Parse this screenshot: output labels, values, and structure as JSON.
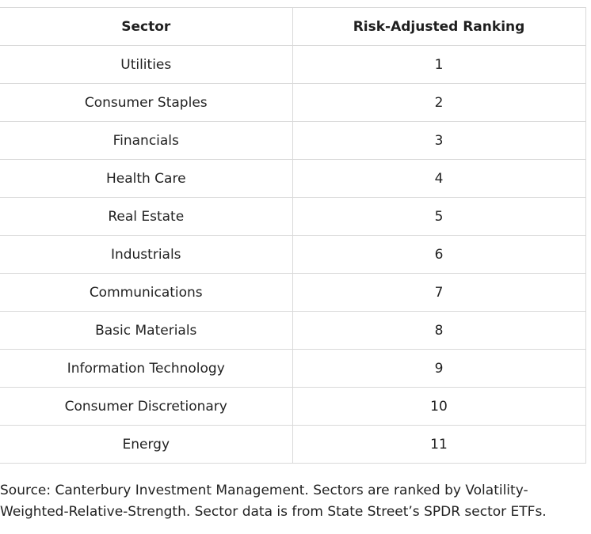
{
  "table": {
    "headers": [
      "Sector",
      "Risk-Adjusted Ranking"
    ],
    "rows": [
      [
        "Utilities",
        "1"
      ],
      [
        "Consumer Staples",
        "2"
      ],
      [
        "Financials",
        "3"
      ],
      [
        "Health Care",
        "4"
      ],
      [
        "Real Estate",
        "5"
      ],
      [
        "Industrials",
        "6"
      ],
      [
        "Communications",
        "7"
      ],
      [
        "Basic Materials",
        "8"
      ],
      [
        "Information Technology",
        "9"
      ],
      [
        "Consumer Discretionary",
        "10"
      ],
      [
        "Energy",
        "11"
      ]
    ]
  },
  "source_note": "Source: Canterbury Investment Management. Sectors are ranked by Volatility-Weighted-Relative-Strength. Sector data is from State Street’s SPDR sector ETFs.",
  "colors": {
    "border": "#d9d9d9",
    "text": "#222222",
    "background": "#ffffff"
  }
}
